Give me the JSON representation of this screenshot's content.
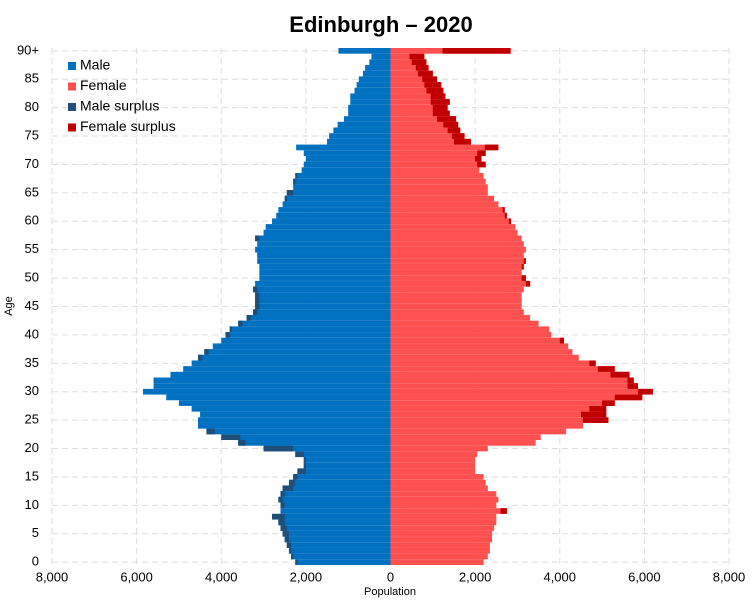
{
  "chart_data": {
    "type": "pyramid",
    "title": "Edinburgh – 2020",
    "xlabel": "Population",
    "ylabel": "Age",
    "ages": [
      0,
      1,
      2,
      3,
      4,
      5,
      6,
      7,
      8,
      9,
      10,
      11,
      12,
      13,
      14,
      15,
      16,
      17,
      18,
      19,
      20,
      21,
      22,
      23,
      24,
      25,
      26,
      27,
      28,
      29,
      30,
      31,
      32,
      33,
      34,
      35,
      36,
      37,
      38,
      39,
      40,
      41,
      42,
      43,
      44,
      45,
      46,
      47,
      48,
      49,
      50,
      51,
      52,
      53,
      54,
      55,
      56,
      57,
      58,
      59,
      60,
      61,
      62,
      63,
      64,
      65,
      66,
      67,
      68,
      69,
      70,
      71,
      72,
      73,
      74,
      75,
      76,
      77,
      78,
      79,
      80,
      81,
      82,
      83,
      84,
      85,
      86,
      87,
      88,
      89,
      90
    ],
    "series": [
      {
        "name": "Male",
        "color": "#0070c0",
        "side": "left",
        "values": [
          2250,
          2350,
          2400,
          2450,
          2500,
          2550,
          2600,
          2650,
          2800,
          2600,
          2600,
          2650,
          2600,
          2550,
          2400,
          2300,
          2200,
          2050,
          2050,
          2250,
          3000,
          3600,
          4000,
          4350,
          4550,
          4550,
          4500,
          4700,
          5000,
          5300,
          5850,
          5600,
          5600,
          5200,
          4900,
          4700,
          4550,
          4400,
          4200,
          4000,
          3900,
          3800,
          3600,
          3400,
          3250,
          3200,
          3200,
          3200,
          3250,
          3200,
          3100,
          3100,
          3100,
          3150,
          3150,
          3200,
          3150,
          3200,
          3000,
          2950,
          2800,
          2700,
          2650,
          2550,
          2500,
          2450,
          2300,
          2300,
          2250,
          2100,
          2050,
          2000,
          2050,
          2230,
          1500,
          1450,
          1350,
          1250,
          1100,
          1000,
          1000,
          950,
          950,
          850,
          800,
          750,
          650,
          600,
          500,
          450,
          1230
        ]
      },
      {
        "name": "Female",
        "color": "#ff5050",
        "side": "right",
        "values": [
          2200,
          2300,
          2350,
          2350,
          2400,
          2400,
          2450,
          2500,
          2500,
          2750,
          2500,
          2550,
          2500,
          2300,
          2250,
          2200,
          2000,
          2000,
          2000,
          2050,
          2300,
          3430,
          3550,
          4150,
          4550,
          5150,
          5100,
          5100,
          5300,
          5950,
          6200,
          5850,
          5750,
          5650,
          5300,
          4850,
          4450,
          4300,
          4200,
          4100,
          3800,
          3750,
          3500,
          3300,
          3150,
          3100,
          3100,
          3100,
          3150,
          3300,
          3200,
          3100,
          3150,
          3200,
          3150,
          3200,
          3150,
          3100,
          3000,
          2950,
          2850,
          2750,
          2700,
          2550,
          2450,
          2300,
          2300,
          2250,
          2200,
          2100,
          2250,
          2150,
          2250,
          2550,
          1900,
          1750,
          1650,
          1600,
          1550,
          1400,
          1350,
          1400,
          1300,
          1250,
          1200,
          1100,
          1000,
          900,
          850,
          800,
          2840
        ]
      }
    ],
    "surplus": [
      {
        "name": "Male surplus",
        "color": "#1f4e79"
      },
      {
        "name": "Female surplus",
        "color": "#c00000"
      }
    ],
    "xlim": [
      -8000,
      8000
    ],
    "xticks": [
      {
        "value": -8000,
        "label": "8,000"
      },
      {
        "value": -6000,
        "label": "6,000"
      },
      {
        "value": -4000,
        "label": "4,000"
      },
      {
        "value": -2000,
        "label": "2,000"
      },
      0,
      {
        "value": 2000,
        "label": "2,000"
      },
      {
        "value": 4000,
        "label": "4,000"
      },
      {
        "value": 6000,
        "label": "6,000"
      },
      {
        "value": 8000,
        "label": "8,000"
      }
    ],
    "ylim": [
      -0.5,
      90.5
    ],
    "yticks": [
      0,
      5,
      10,
      15,
      20,
      25,
      30,
      35,
      40,
      45,
      50,
      55,
      60,
      65,
      70,
      75,
      80,
      85,
      {
        "value": 90,
        "label": "90+"
      }
    ],
    "grid": true,
    "legend": "top-left"
  }
}
